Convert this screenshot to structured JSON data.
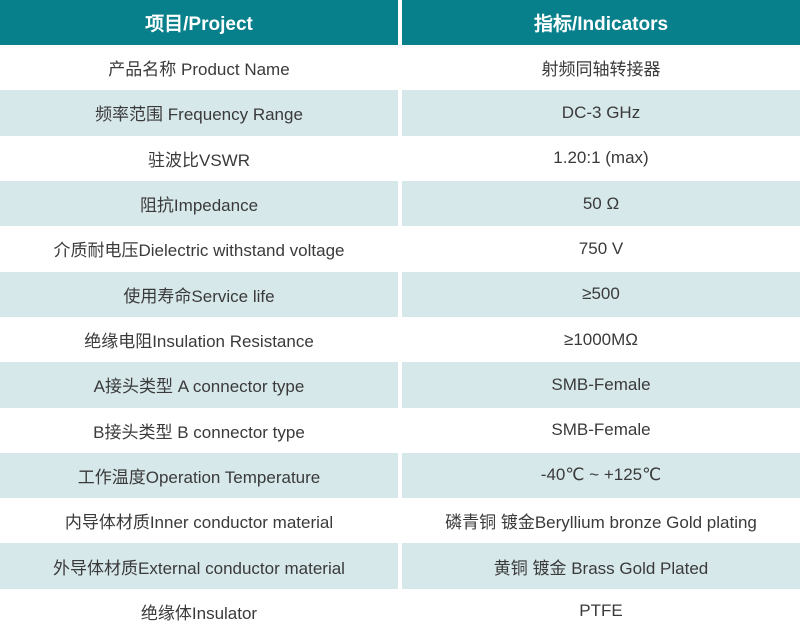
{
  "colors": {
    "header_bg": "#08808c",
    "header_text": "#ffffff",
    "row_bg": "#ffffff",
    "row_alt_bg": "#d7e8eb",
    "cell_text": "#3a3a3a",
    "gutter": "#ffffff"
  },
  "table": {
    "columns": [
      {
        "label": "项目/Project"
      },
      {
        "label": "指标/Indicators"
      }
    ],
    "rows": [
      {
        "project": "产品名称 Product Name",
        "indicator": "射频同轴转接器"
      },
      {
        "project": "频率范围 Frequency Range",
        "indicator": "DC-3 GHz"
      },
      {
        "project": "驻波比VSWR",
        "indicator": "1.20:1 (max)"
      },
      {
        "project": "阻抗Impedance",
        "indicator": "50 Ω"
      },
      {
        "project": "介质耐电压Dielectric withstand voltage",
        "indicator": "750 V"
      },
      {
        "project": "使用寿命Service life",
        "indicator": "≥500"
      },
      {
        "project": "绝缘电阻Insulation Resistance",
        "indicator": "≥1000MΩ"
      },
      {
        "project": "A接头类型 A connector type",
        "indicator": "SMB-Female"
      },
      {
        "project": "B接头类型 B connector type",
        "indicator": "SMB-Female"
      },
      {
        "project": "工作温度Operation Temperature",
        "indicator": "-40℃ ~ +125℃"
      },
      {
        "project": "内导体材质Inner conductor material",
        "indicator": "磷青铜 镀金Beryllium bronze Gold plating"
      },
      {
        "project": "外导体材质External conductor material",
        "indicator": "黄铜 镀金 Brass Gold Plated"
      },
      {
        "project": "绝缘体Insulator",
        "indicator": "PTFE"
      }
    ]
  }
}
